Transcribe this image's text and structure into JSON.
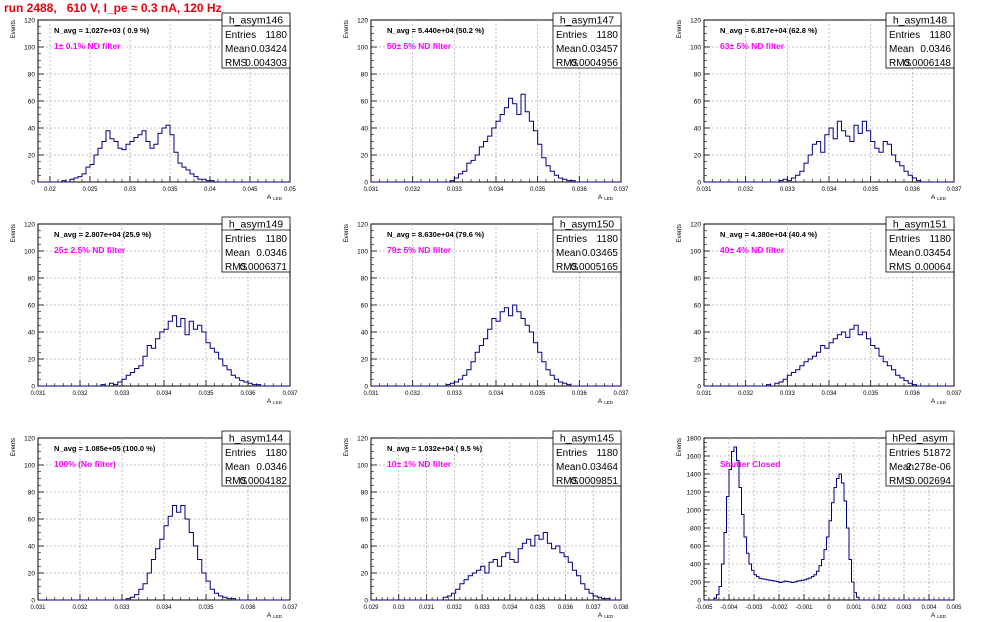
{
  "page_title": "run 2488,   610 V, I_pe ≈ 0.3 nA, 120 Hz",
  "colors": {
    "title": "#e8000b",
    "annotation": "#ff00ff",
    "histogram": "#000080",
    "grid": "#b0b0b0"
  },
  "stat_labels": {
    "entries": "Entries",
    "mean": "Mean",
    "rms": "RMS"
  },
  "chart_data": [
    {
      "type": "histogram",
      "name": "h_asym146",
      "ylabel": "Events",
      "xlabel": "A_{LED}",
      "ylim": [
        0,
        120
      ],
      "yticks": [
        "0",
        "20",
        "40",
        "60",
        "80",
        "100",
        "120"
      ],
      "xlim": [
        0.0185,
        0.05
      ],
      "xticks": [
        "0.02",
        "0.025",
        "0.03",
        "0.035",
        "0.04",
        "0.045",
        "0.05"
      ],
      "xtick_values": [
        0.02,
        0.025,
        0.03,
        0.035,
        0.04,
        0.045,
        0.05
      ],
      "stats": {
        "entries": "1180",
        "mean": "0.03424",
        "rms": "0.004303"
      },
      "n_avg": "N_avg = 1.027e+03 ( 0.9 %)",
      "filter": "1± 0.1% ND filter",
      "bin_width": 0.0005,
      "bin_start": 0.0215,
      "counts": [
        1,
        0,
        2,
        3,
        4,
        6,
        11,
        13,
        20,
        25,
        30,
        38,
        32,
        30,
        25,
        24,
        28,
        30,
        33,
        35,
        38,
        30,
        25,
        28,
        36,
        40,
        42,
        35,
        22,
        14,
        11,
        9,
        6,
        4,
        2,
        2,
        1,
        1
      ]
    },
    {
      "type": "histogram",
      "name": "h_asym147",
      "ylabel": "Events",
      "xlabel": "A_{LED}",
      "ylim": [
        0,
        120
      ],
      "yticks": [
        "0",
        "20",
        "40",
        "60",
        "80",
        "100",
        "120"
      ],
      "xlim": [
        0.031,
        0.037
      ],
      "xticks": [
        "0.031",
        "0.032",
        "0.033",
        "0.034",
        "0.035",
        "0.036",
        "0.037"
      ],
      "xtick_values": [
        0.031,
        0.032,
        0.033,
        0.034,
        0.035,
        0.036,
        0.037
      ],
      "stats": {
        "entries": "1180",
        "mean": "0.03457",
        "rms": "0.0004956"
      },
      "n_avg": "N_avg = 5.440e+04 (50.2 %)",
      "filter": "50± 5% ND filter",
      "bin_width": 0.0001,
      "bin_start": 0.0329,
      "counts": [
        1,
        3,
        6,
        8,
        14,
        16,
        20,
        26,
        30,
        34,
        40,
        45,
        50,
        55,
        62,
        58,
        50,
        65,
        52,
        45,
        38,
        28,
        18,
        12,
        8,
        5,
        3,
        2,
        1,
        1
      ]
    },
    {
      "type": "histogram",
      "name": "h_asym148",
      "ylabel": "Events",
      "xlabel": "A_{LED}",
      "ylim": [
        0,
        120
      ],
      "yticks": [
        "0",
        "20",
        "40",
        "60",
        "80",
        "100",
        "120"
      ],
      "xlim": [
        0.031,
        0.037
      ],
      "xticks": [
        "0.031",
        "0.032",
        "0.033",
        "0.034",
        "0.035",
        "0.036",
        "0.037"
      ],
      "xtick_values": [
        0.031,
        0.032,
        0.033,
        0.034,
        0.035,
        0.036,
        0.037
      ],
      "stats": {
        "entries": "1180",
        "mean": "0.0346",
        "rms": "0.0006148"
      },
      "n_avg": "N_avg = 6.817e+04 (62.8 %)",
      "filter": "63± 5% ND filter",
      "bin_width": 0.0001,
      "bin_start": 0.0328,
      "counts": [
        1,
        2,
        1,
        3,
        5,
        8,
        14,
        20,
        28,
        30,
        22,
        35,
        40,
        32,
        45,
        38,
        34,
        30,
        42,
        36,
        45,
        38,
        30,
        25,
        22,
        30,
        28,
        20,
        15,
        12,
        8,
        5,
        3,
        1
      ]
    },
    {
      "type": "histogram",
      "name": "h_asym149",
      "ylabel": "Events",
      "xlabel": "A_{LED}",
      "ylim": [
        0,
        120
      ],
      "yticks": [
        "0",
        "20",
        "40",
        "60",
        "80",
        "100",
        "120"
      ],
      "xlim": [
        0.031,
        0.037
      ],
      "xticks": [
        "0.031",
        "0.032",
        "0.033",
        "0.034",
        "0.035",
        "0.036",
        "0.037"
      ],
      "xtick_values": [
        0.031,
        0.032,
        0.033,
        0.034,
        0.035,
        0.036,
        0.037
      ],
      "stats": {
        "entries": "1180",
        "mean": "0.0346",
        "rms": "0.0006371"
      },
      "n_avg": "N_avg = 2.807e+04 (25.9 %)",
      "filter": "25± 2.5% ND filter",
      "bin_width": 0.0001,
      "bin_start": 0.0325,
      "counts": [
        1,
        0,
        2,
        1,
        3,
        5,
        8,
        10,
        13,
        15,
        22,
        30,
        28,
        35,
        40,
        42,
        48,
        52,
        44,
        50,
        38,
        48,
        42,
        45,
        40,
        32,
        28,
        25,
        20,
        15,
        12,
        8,
        6,
        4,
        3,
        2,
        1,
        1
      ]
    },
    {
      "type": "histogram",
      "name": "h_asym150",
      "ylabel": "Events",
      "xlabel": "A_{LED}",
      "ylim": [
        0,
        120
      ],
      "yticks": [
        "0",
        "20",
        "40",
        "60",
        "80",
        "100",
        "120"
      ],
      "xlim": [
        0.031,
        0.037
      ],
      "xticks": [
        "0.031",
        "0.032",
        "0.033",
        "0.034",
        "0.035",
        "0.036",
        "0.037"
      ],
      "xtick_values": [
        0.031,
        0.032,
        0.033,
        0.034,
        0.035,
        0.036,
        0.037
      ],
      "stats": {
        "entries": "1180",
        "mean": "0.03465",
        "rms": "0.0005165"
      },
      "n_avg": "N_avg = 8.630e+04 (79.6 %)",
      "filter": "79± 5% ND filter",
      "bin_width": 0.0001,
      "bin_start": 0.0328,
      "counts": [
        1,
        2,
        3,
        5,
        8,
        12,
        18,
        25,
        30,
        35,
        42,
        50,
        48,
        55,
        58,
        52,
        60,
        55,
        50,
        45,
        40,
        32,
        25,
        18,
        12,
        8,
        5,
        3,
        2,
        1
      ]
    },
    {
      "type": "histogram",
      "name": "h_asym151",
      "ylabel": "Events",
      "xlabel": "A_{LED}",
      "ylim": [
        0,
        120
      ],
      "yticks": [
        "0",
        "20",
        "40",
        "60",
        "80",
        "100",
        "120"
      ],
      "xlim": [
        0.031,
        0.037
      ],
      "xticks": [
        "0.031",
        "0.032",
        "0.033",
        "0.034",
        "0.035",
        "0.036",
        "0.037"
      ],
      "xtick_values": [
        0.031,
        0.032,
        0.033,
        0.034,
        0.035,
        0.036,
        0.037
      ],
      "stats": {
        "entries": "1180",
        "mean": "0.03454",
        "rms": "0.00064"
      },
      "n_avg": "N_avg = 4.380e+04 (40.4 %)",
      "filter": "40± 4% ND filter",
      "bin_width": 0.0001,
      "bin_start": 0.0325,
      "counts": [
        1,
        0,
        2,
        3,
        5,
        8,
        10,
        12,
        15,
        18,
        20,
        22,
        25,
        30,
        28,
        32,
        35,
        38,
        40,
        36,
        42,
        45,
        38,
        40,
        35,
        30,
        28,
        22,
        18,
        15,
        12,
        8,
        6,
        4,
        2,
        1
      ]
    },
    {
      "type": "histogram",
      "name": "h_asym144",
      "ylabel": "Events",
      "xlabel": "A_{LED}",
      "ylim": [
        0,
        120
      ],
      "yticks": [
        "0",
        "20",
        "40",
        "60",
        "80",
        "100",
        "120"
      ],
      "xlim": [
        0.031,
        0.037
      ],
      "xticks": [
        "0.031",
        "0.032",
        "0.033",
        "0.034",
        "0.035",
        "0.036",
        "0.037"
      ],
      "xtick_values": [
        0.031,
        0.032,
        0.033,
        0.034,
        0.035,
        0.036,
        0.037
      ],
      "stats": {
        "entries": "1180",
        "mean": "0.0346",
        "rms": "0.0004182"
      },
      "n_avg": "N_avg = 1.085e+05 (100.0 %)",
      "filter": "100% (No filter)",
      "bin_width": 0.0001,
      "bin_start": 0.0331,
      "counts": [
        1,
        2,
        4,
        8,
        12,
        20,
        30,
        38,
        45,
        55,
        62,
        70,
        65,
        70,
        60,
        50,
        40,
        30,
        20,
        14,
        8,
        5,
        3,
        2,
        1,
        1
      ]
    },
    {
      "type": "histogram",
      "name": "h_asym145",
      "ylabel": "Events",
      "xlabel": "A_{LED}",
      "ylim": [
        0,
        120
      ],
      "yticks": [
        "0",
        "20",
        "40",
        "60",
        "80",
        "100",
        "120"
      ],
      "xlim": [
        0.029,
        0.038
      ],
      "xticks": [
        "0.029",
        "0.03",
        "0.031",
        "0.032",
        "0.033",
        "0.034",
        "0.035",
        "0.036",
        "0.037",
        "0.038"
      ],
      "xtick_values": [
        0.029,
        0.03,
        0.031,
        0.032,
        0.033,
        0.034,
        0.035,
        0.036,
        0.037,
        0.038
      ],
      "stats": {
        "entries": "1180",
        "mean": "0.03464",
        "rms": "0.0009851"
      },
      "n_avg": "N_avg = 1.032e+04 ( 9.5 %)",
      "filter": "10± 1% ND filter",
      "bin_width": 0.00015,
      "bin_start": 0.0316,
      "counts": [
        2,
        3,
        5,
        8,
        12,
        15,
        18,
        20,
        22,
        25,
        20,
        28,
        30,
        25,
        32,
        35,
        30,
        28,
        38,
        42,
        45,
        40,
        48,
        45,
        50,
        42,
        38,
        40,
        35,
        32,
        28,
        22,
        18,
        12,
        8,
        5,
        3,
        2,
        1,
        1
      ]
    },
    {
      "type": "histogram",
      "name": "hPed_asym",
      "ylabel": "Events",
      "xlabel": "A_{LED}",
      "ylim": [
        0,
        1800
      ],
      "yticks": [
        "0",
        "200",
        "400",
        "600",
        "800",
        "1000",
        "1200",
        "1400",
        "1600",
        "1800"
      ],
      "xlim": [
        -0.005,
        0.005
      ],
      "xticks": [
        "-0.005",
        "-0.004",
        "-0.003",
        "-0.002",
        "-0.001",
        "0",
        "0.001",
        "0.002",
        "0.003",
        "0.004",
        "0.005"
      ],
      "xtick_values": [
        -0.005,
        -0.004,
        -0.003,
        -0.002,
        -0.001,
        0,
        0.001,
        0.002,
        0.003,
        0.004,
        0.005
      ],
      "stats": {
        "entries": "51872",
        "mean": "2.278e-06",
        "rms": "0.002694"
      },
      "n_avg": "",
      "filter": "Shutter Closed",
      "bin_width": 0.0001,
      "bin_start": -0.0046,
      "counts": [
        20,
        60,
        150,
        400,
        750,
        1150,
        1450,
        1650,
        1700,
        1550,
        1250,
        950,
        700,
        520,
        400,
        330,
        280,
        260,
        240,
        235,
        230,
        225,
        220,
        215,
        210,
        205,
        195,
        200,
        210,
        205,
        200,
        195,
        200,
        210,
        215,
        220,
        225,
        235,
        245,
        260,
        280,
        320,
        380,
        450,
        560,
        700,
        880,
        1080,
        1250,
        1350,
        1400,
        1300,
        1100,
        800,
        450,
        200,
        80,
        30
      ]
    }
  ]
}
